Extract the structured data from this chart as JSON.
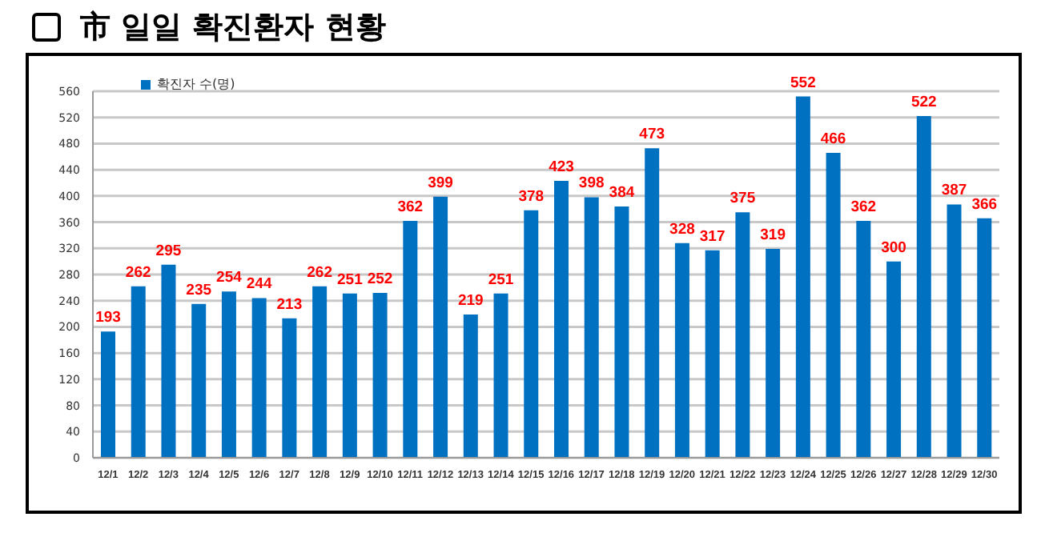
{
  "chart_data": {
    "type": "bar",
    "title": "市 일일 확진환자 현황",
    "categories": [
      "12/1",
      "12/2",
      "12/3",
      "12/4",
      "12/5",
      "12/6",
      "12/7",
      "12/8",
      "12/9",
      "12/10",
      "12/11",
      "12/12",
      "12/13",
      "12/14",
      "12/15",
      "12/16",
      "12/17",
      "12/18",
      "12/19",
      "12/20",
      "12/21",
      "12/22",
      "12/23",
      "12/24",
      "12/25",
      "12/26",
      "12/27",
      "12/28",
      "12/29",
      "12/30"
    ],
    "series": [
      {
        "name": "확진자 수(명)",
        "color": "#0070c0",
        "values": [
          193,
          262,
          295,
          235,
          254,
          244,
          213,
          262,
          251,
          252,
          362,
          399,
          219,
          251,
          378,
          423,
          398,
          384,
          473,
          328,
          317,
          375,
          319,
          552,
          466,
          362,
          300,
          522,
          387,
          366
        ]
      }
    ],
    "ylim": [
      0,
      560
    ],
    "yticks": [
      0,
      40,
      80,
      120,
      160,
      200,
      240,
      280,
      320,
      360,
      400,
      440,
      480,
      520,
      560
    ],
    "grid": "y",
    "legend": "top left",
    "data_labels": true
  }
}
